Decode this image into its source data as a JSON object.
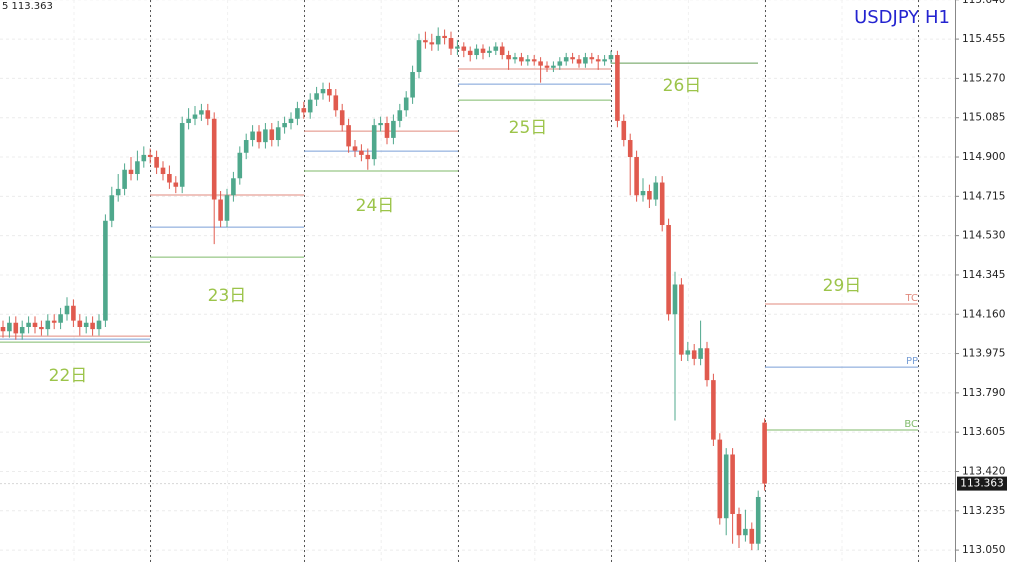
{
  "chart_data": {
    "type": "candlestick",
    "title": "USDJPY H1",
    "header_text": "5 113.363",
    "ylim": [
      112.994,
      115.639
    ],
    "yticks": [
      {
        "value": 115.64,
        "label": "115.640"
      },
      115.455,
      {
        "value": 115.27,
        "label": "115.270"
      },
      115.085,
      {
        "value": 114.9,
        "label": "114.900"
      },
      114.715,
      {
        "value": 114.53,
        "label": "114.530"
      },
      114.345,
      {
        "value": 114.16,
        "label": "114.160"
      },
      113.975,
      {
        "value": 113.79,
        "label": "113.790"
      },
      113.605,
      {
        "value": 113.42,
        "label": "113.420"
      },
      113.235,
      {
        "value": 113.05,
        "label": "113.050"
      }
    ],
    "grid": true,
    "up_color": "#4fa88c",
    "down_color": "#e05a4e",
    "current_price": 113.363,
    "open": [
      114.1,
      114.08,
      114.12,
      114.07,
      114.1,
      114.12,
      114.1,
      114.09,
      114.13,
      114.12,
      114.16,
      114.2,
      114.13,
      114.1,
      114.12,
      114.09,
      114.13,
      114.6,
      114.72,
      114.75,
      114.84,
      114.82,
      114.88,
      114.91,
      114.9,
      114.85,
      114.82,
      114.78,
      114.76,
      115.06,
      115.08,
      115.1,
      115.12,
      115.08,
      114.7,
      114.6,
      114.72,
      114.8,
      114.92,
      114.98,
      115.02,
      114.97,
      115.03,
      114.98,
      115.04,
      115.06,
      115.08,
      115.13,
      115.11,
      115.17,
      115.2,
      115.22,
      115.19,
      115.12,
      115.05,
      114.95,
      114.93,
      114.91,
      114.89,
      115.05,
      115.06,
      114.99,
      115.07,
      115.12,
      115.18,
      115.3,
      115.45,
      115.44,
      115.43,
      115.47,
      115.46,
      115.41,
      115.42,
      115.4,
      115.38,
      115.41,
      115.39,
      115.4,
      115.42,
      115.38,
      115.36,
      115.37,
      115.35,
      115.36,
      115.35,
      115.33,
      115.32,
      115.33,
      115.35,
      115.37,
      115.36,
      115.34,
      115.37,
      115.36,
      115.35,
      115.36,
      115.38,
      115.07,
      114.98,
      114.9,
      114.72,
      114.74,
      114.7,
      114.78,
      114.58,
      114.16,
      114.3,
      113.97,
      113.99,
      113.95,
      114.0,
      113.85,
      113.57,
      113.2,
      113.5,
      113.22,
      113.12,
      113.15,
      113.08,
      113.65
    ],
    "high": [
      114.13,
      114.15,
      114.15,
      114.13,
      114.15,
      114.15,
      114.13,
      114.16,
      114.16,
      114.19,
      114.24,
      114.23,
      114.16,
      114.15,
      114.15,
      114.16,
      114.63,
      114.76,
      114.82,
      114.87,
      114.9,
      114.93,
      114.95,
      114.94,
      114.93,
      114.88,
      114.86,
      114.81,
      115.09,
      115.13,
      115.14,
      115.15,
      115.15,
      115.11,
      114.74,
      114.75,
      114.83,
      114.95,
      115.01,
      115.05,
      115.05,
      115.06,
      115.06,
      115.07,
      115.09,
      115.11,
      115.16,
      115.16,
      115.2,
      115.23,
      115.25,
      115.25,
      115.22,
      115.15,
      115.08,
      114.98,
      114.96,
      114.94,
      115.08,
      115.09,
      115.09,
      115.1,
      115.15,
      115.21,
      115.33,
      115.48,
      115.49,
      115.48,
      115.51,
      115.5,
      115.49,
      115.45,
      115.44,
      115.42,
      115.43,
      115.43,
      115.42,
      115.44,
      115.44,
      115.4,
      115.39,
      115.39,
      115.38,
      115.38,
      115.37,
      115.35,
      115.35,
      115.37,
      115.39,
      115.39,
      115.38,
      115.39,
      115.39,
      115.38,
      115.38,
      115.4,
      115.4,
      115.1,
      115.01,
      114.93,
      114.8,
      114.77,
      114.81,
      114.81,
      114.61,
      114.36,
      114.33,
      114.03,
      114.02,
      114.13,
      114.03,
      113.88,
      113.6,
      113.53,
      113.53,
      113.25,
      113.24,
      113.18,
      113.33,
      113.67
    ],
    "low": [
      114.05,
      114.05,
      114.04,
      114.04,
      114.07,
      114.07,
      114.06,
      114.06,
      114.09,
      114.09,
      114.13,
      114.1,
      114.06,
      114.07,
      114.06,
      114.06,
      114.1,
      114.57,
      114.69,
      114.72,
      114.79,
      114.79,
      114.85,
      114.87,
      114.82,
      114.79,
      114.75,
      114.73,
      114.73,
      115.03,
      115.05,
      115.07,
      115.05,
      114.49,
      114.57,
      114.57,
      114.69,
      114.77,
      114.89,
      114.95,
      114.94,
      114.94,
      114.95,
      114.95,
      115.01,
      115.03,
      115.05,
      115.08,
      115.08,
      115.14,
      115.17,
      115.16,
      115.09,
      115.02,
      114.92,
      114.9,
      114.88,
      114.84,
      114.86,
      115.02,
      114.96,
      114.96,
      115.04,
      115.09,
      115.15,
      115.27,
      115.41,
      115.4,
      115.4,
      115.43,
      115.38,
      115.38,
      115.37,
      115.35,
      115.36,
      115.36,
      115.37,
      115.38,
      115.36,
      115.31,
      115.34,
      115.33,
      115.33,
      115.33,
      115.25,
      115.3,
      115.3,
      115.31,
      115.33,
      115.34,
      115.32,
      115.32,
      115.34,
      115.31,
      115.33,
      115.34,
      115.04,
      114.95,
      114.72,
      114.69,
      114.69,
      114.66,
      114.67,
      114.55,
      114.13,
      113.66,
      113.94,
      113.94,
      113.92,
      113.92,
      113.82,
      113.54,
      113.17,
      113.12,
      113.08,
      113.06,
      113.09,
      113.05,
      113.05,
      113.33
    ],
    "close": [
      114.08,
      114.12,
      114.07,
      114.1,
      114.12,
      114.1,
      114.09,
      114.13,
      114.12,
      114.16,
      114.2,
      114.13,
      114.1,
      114.12,
      114.09,
      114.13,
      114.6,
      114.72,
      114.75,
      114.84,
      114.82,
      114.88,
      114.91,
      114.9,
      114.85,
      114.82,
      114.78,
      114.76,
      115.06,
      115.08,
      115.1,
      115.12,
      115.08,
      114.7,
      114.6,
      114.72,
      114.8,
      114.92,
      114.98,
      115.02,
      114.97,
      115.03,
      114.98,
      115.04,
      115.06,
      115.08,
      115.13,
      115.11,
      115.17,
      115.2,
      115.22,
      115.19,
      115.12,
      115.05,
      114.95,
      114.93,
      114.91,
      114.89,
      115.05,
      115.06,
      114.99,
      115.07,
      115.12,
      115.18,
      115.3,
      115.45,
      115.44,
      115.43,
      115.47,
      115.46,
      115.41,
      115.42,
      115.4,
      115.38,
      115.41,
      115.39,
      115.4,
      115.42,
      115.38,
      115.36,
      115.37,
      115.35,
      115.36,
      115.35,
      115.33,
      115.32,
      115.33,
      115.35,
      115.37,
      115.36,
      115.34,
      115.37,
      115.36,
      115.35,
      115.36,
      115.38,
      115.07,
      114.98,
      114.9,
      114.72,
      114.74,
      114.7,
      114.78,
      114.58,
      114.16,
      114.3,
      113.97,
      113.99,
      113.95,
      114.0,
      113.85,
      113.57,
      113.2,
      113.5,
      113.22,
      113.12,
      113.15,
      113.08,
      113.3,
      113.363
    ],
    "day_labels": [
      "22日",
      "23日",
      "24日",
      "25日",
      "26日",
      "29日"
    ],
    "pivot_colors": {
      "tc": "#e08a7e",
      "pp": "#7a9fd6",
      "bc": "#7fba6a"
    },
    "pivots": [
      {
        "tc": 114.057,
        "pp": 114.043,
        "bc": 114.029
      },
      {
        "tc": 114.721,
        "pp": 114.57,
        "bc": 114.429
      },
      {
        "tc": 115.022,
        "pp": 114.928,
        "bc": 114.834
      },
      {
        "tc": 115.314,
        "pp": 115.243,
        "bc": 115.168
      },
      {
        "tc": 115.342,
        "pp": 115.342,
        "bc": 115.342
      },
      {
        "tc": 114.208,
        "pp": 113.911,
        "bc": 113.615
      }
    ],
    "pivot_labels": [
      "TC",
      "PP",
      "BC"
    ]
  }
}
